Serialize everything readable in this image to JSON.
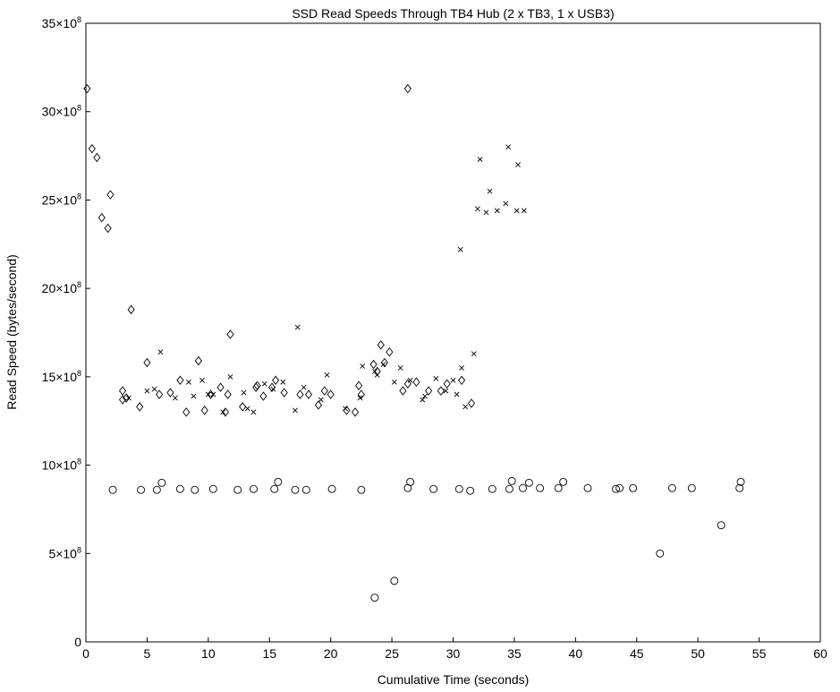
{
  "chart_data": {
    "type": "scatter",
    "title": "SSD Read Speeds Through TB4 Hub (2 x TB3, 1 x USB3)",
    "xlabel": "Cumulative Time (seconds)",
    "ylabel": "Read Speed (bytes/second)",
    "xlim": [
      0,
      60
    ],
    "ylim": [
      0,
      3500000000
    ],
    "x_ticks": [
      0,
      5,
      10,
      15,
      20,
      25,
      30,
      35,
      40,
      45,
      50,
      55,
      60
    ],
    "y_ticks": [
      0,
      500000000,
      1000000000,
      1500000000,
      2000000000,
      2500000000,
      3000000000,
      3500000000
    ],
    "y_tick_labels": [
      {
        "mantissa": "0",
        "exponent": ""
      },
      {
        "mantissa": "5×10",
        "exponent": "8"
      },
      {
        "mantissa": "10×10",
        "exponent": "8"
      },
      {
        "mantissa": "15×10",
        "exponent": "8"
      },
      {
        "mantissa": "20×10",
        "exponent": "8"
      },
      {
        "mantissa": "25×10",
        "exponent": "8"
      },
      {
        "mantissa": "30×10",
        "exponent": "8"
      },
      {
        "mantissa": "35×10",
        "exponent": "8"
      }
    ],
    "grid": false,
    "legend": "none",
    "series": [
      {
        "marker": "diamond",
        "points": [
          [
            0.1,
            3130000000
          ],
          [
            0.5,
            2790000000
          ],
          [
            0.9,
            2740000000
          ],
          [
            1.3,
            2400000000
          ],
          [
            1.8,
            2340000000
          ],
          [
            2.0,
            2530000000
          ],
          [
            3.0,
            1420000000
          ],
          [
            3.0,
            1370000000
          ],
          [
            3.3,
            1380000000
          ],
          [
            3.7,
            1880000000
          ],
          [
            4.4,
            1330000000
          ],
          [
            5.0,
            1580000000
          ],
          [
            6.0,
            1400000000
          ],
          [
            6.9,
            1410000000
          ],
          [
            7.7,
            1480000000
          ],
          [
            8.2,
            1300000000
          ],
          [
            9.2,
            1590000000
          ],
          [
            9.7,
            1310000000
          ],
          [
            10.2,
            1400000000
          ],
          [
            11.0,
            1440000000
          ],
          [
            11.4,
            1300000000
          ],
          [
            11.6,
            1400000000
          ],
          [
            11.8,
            1740000000
          ],
          [
            12.8,
            1330000000
          ],
          [
            13.9,
            1440000000
          ],
          [
            14.0,
            1450000000
          ],
          [
            14.5,
            1390000000
          ],
          [
            15.2,
            1440000000
          ],
          [
            15.5,
            1480000000
          ],
          [
            16.2,
            1410000000
          ],
          [
            17.5,
            1400000000
          ],
          [
            18.2,
            1400000000
          ],
          [
            19.0,
            1340000000
          ],
          [
            19.5,
            1420000000
          ],
          [
            20.0,
            1400000000
          ],
          [
            21.3,
            1310000000
          ],
          [
            22.0,
            1300000000
          ],
          [
            22.3,
            1450000000
          ],
          [
            22.5,
            1400000000
          ],
          [
            23.5,
            1570000000
          ],
          [
            23.8,
            1530000000
          ],
          [
            24.1,
            1680000000
          ],
          [
            24.4,
            1580000000
          ],
          [
            24.8,
            1640000000
          ],
          [
            25.9,
            1420000000
          ],
          [
            26.3,
            1460000000
          ],
          [
            26.3,
            3130000000
          ],
          [
            27.0,
            1470000000
          ],
          [
            28.0,
            1420000000
          ],
          [
            29.0,
            1420000000
          ],
          [
            29.5,
            1460000000
          ],
          [
            30.7,
            1480000000
          ],
          [
            31.5,
            1350000000
          ]
        ]
      },
      {
        "marker": "cross",
        "points": [
          [
            3.5,
            1380000000
          ],
          [
            5.0,
            1420000000
          ],
          [
            5.6,
            1430000000
          ],
          [
            6.1,
            1640000000
          ],
          [
            7.3,
            1380000000
          ],
          [
            8.4,
            1470000000
          ],
          [
            8.8,
            1390000000
          ],
          [
            9.5,
            1480000000
          ],
          [
            10.0,
            1400000000
          ],
          [
            10.4,
            1400000000
          ],
          [
            11.2,
            1300000000
          ],
          [
            11.8,
            1500000000
          ],
          [
            12.9,
            1410000000
          ],
          [
            13.2,
            1320000000
          ],
          [
            13.7,
            1300000000
          ],
          [
            14.6,
            1460000000
          ],
          [
            15.3,
            1430000000
          ],
          [
            16.1,
            1470000000
          ],
          [
            17.1,
            1310000000
          ],
          [
            17.3,
            1780000000
          ],
          [
            17.8,
            1440000000
          ],
          [
            19.2,
            1370000000
          ],
          [
            19.7,
            1510000000
          ],
          [
            21.2,
            1320000000
          ],
          [
            22.4,
            1380000000
          ],
          [
            22.6,
            1560000000
          ],
          [
            23.6,
            1530000000
          ],
          [
            23.8,
            1510000000
          ],
          [
            24.3,
            1570000000
          ],
          [
            25.2,
            1470000000
          ],
          [
            25.7,
            1550000000
          ],
          [
            26.5,
            1480000000
          ],
          [
            27.5,
            1370000000
          ],
          [
            27.7,
            1390000000
          ],
          [
            28.6,
            1490000000
          ],
          [
            29.4,
            1420000000
          ],
          [
            30.0,
            1480000000
          ],
          [
            30.3,
            1400000000
          ],
          [
            30.6,
            2220000000
          ],
          [
            30.7,
            1550000000
          ],
          [
            31.0,
            1330000000
          ],
          [
            31.7,
            1630000000
          ],
          [
            32.0,
            2450000000
          ],
          [
            32.2,
            2730000000
          ],
          [
            32.7,
            2430000000
          ],
          [
            33.0,
            2550000000
          ],
          [
            33.6,
            2440000000
          ],
          [
            34.3,
            2480000000
          ],
          [
            34.5,
            2800000000
          ],
          [
            35.2,
            2440000000
          ],
          [
            35.3,
            2700000000
          ],
          [
            35.8,
            2440000000
          ]
        ]
      },
      {
        "marker": "circle",
        "points": [
          [
            2.2,
            860000000
          ],
          [
            4.5,
            860000000
          ],
          [
            5.8,
            860000000
          ],
          [
            6.2,
            900000000
          ],
          [
            7.7,
            865000000
          ],
          [
            8.9,
            860000000
          ],
          [
            10.4,
            865000000
          ],
          [
            12.4,
            860000000
          ],
          [
            13.7,
            865000000
          ],
          [
            15.4,
            865000000
          ],
          [
            15.7,
            905000000
          ],
          [
            17.1,
            860000000
          ],
          [
            18.0,
            860000000
          ],
          [
            20.1,
            865000000
          ],
          [
            22.5,
            860000000
          ],
          [
            23.6,
            250000000
          ],
          [
            25.2,
            345000000
          ],
          [
            26.3,
            870000000
          ],
          [
            26.5,
            905000000
          ],
          [
            28.4,
            865000000
          ],
          [
            30.5,
            865000000
          ],
          [
            31.4,
            855000000
          ],
          [
            33.2,
            865000000
          ],
          [
            34.6,
            865000000
          ],
          [
            34.8,
            910000000
          ],
          [
            35.7,
            870000000
          ],
          [
            36.2,
            900000000
          ],
          [
            37.1,
            870000000
          ],
          [
            38.6,
            870000000
          ],
          [
            39.0,
            905000000
          ],
          [
            41.0,
            870000000
          ],
          [
            43.3,
            865000000
          ],
          [
            43.6,
            870000000
          ],
          [
            44.7,
            870000000
          ],
          [
            46.9,
            500000000
          ],
          [
            47.9,
            870000000
          ],
          [
            49.5,
            870000000
          ],
          [
            51.9,
            660000000
          ],
          [
            53.4,
            870000000
          ],
          [
            53.5,
            905000000
          ]
        ]
      }
    ]
  }
}
